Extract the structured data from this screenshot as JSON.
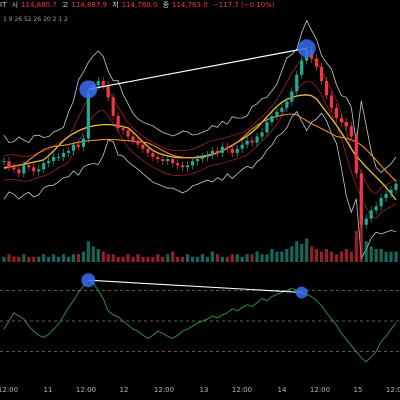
{
  "header": {
    "symbol_tail": "IT",
    "open_label": "시",
    "open_value": "114,880.7",
    "high_label": "고",
    "high_value": "114,887.9",
    "low_label": "저",
    "low_value": "114,760.0",
    "close_label": "종",
    "close_value": "114,763.0",
    "change": "−117.7 (−0.10%)"
  },
  "indicator_params": "1 9 26 52 26 20 2 1 2",
  "colors": {
    "bullish": "#22ab94",
    "bearish": "#f23645",
    "ema_yellow": "#e8c33a",
    "ema_orange": "#f08c2e",
    "bollinger": "#c9c9c9",
    "lower_green": "#2e8b3a",
    "marker_blue": "#3a6cf0",
    "red_band": "#b3262f"
  },
  "chart_data": [
    {
      "type": "candlestick",
      "title": "",
      "x_ticks": [
        "12:00",
        "11",
        "12:00",
        "12",
        "12:00",
        "13",
        "12:00",
        "14",
        "12:00",
        "15",
        "12:00"
      ],
      "price_series": [
        36,
        33,
        32,
        30,
        34,
        33,
        31,
        32,
        35,
        36,
        38,
        38,
        40,
        41,
        44,
        43,
        47,
        70,
        73,
        75,
        73,
        67,
        58,
        52,
        51,
        48,
        46,
        44,
        42,
        40,
        38,
        37,
        36,
        37,
        35,
        34,
        33,
        34,
        36,
        37,
        38,
        39,
        41,
        40,
        43,
        42,
        40,
        42,
        44,
        46,
        45,
        48,
        50,
        55,
        58,
        60,
        62,
        65,
        70,
        78,
        85,
        90,
        86,
        82,
        75,
        68,
        62,
        57,
        55,
        53,
        48,
        30,
        5,
        8,
        12,
        14,
        18,
        20,
        22,
        25
      ],
      "volume_series": [
        2,
        3,
        2,
        2,
        3,
        2,
        2,
        2,
        3,
        2,
        3,
        2,
        3,
        2,
        3,
        3,
        4,
        8,
        6,
        5,
        4,
        3,
        3,
        2,
        2,
        3,
        2,
        3,
        2,
        2,
        2,
        3,
        2,
        3,
        4,
        2,
        2,
        3,
        2,
        2,
        3,
        2,
        4,
        3,
        2,
        2,
        3,
        3,
        2,
        3,
        3,
        4,
        3,
        3,
        5,
        4,
        4,
        5,
        6,
        8,
        7,
        9,
        6,
        5,
        4,
        5,
        4,
        3,
        4,
        5,
        4,
        12,
        18,
        8,
        6,
        5,
        5,
        4,
        4,
        4
      ],
      "trendline_note_points": [
        "left-peak",
        "right-peak"
      ]
    },
    {
      "type": "line",
      "title": "",
      "oscillator_series": [
        42,
        50,
        58,
        55,
        52,
        45,
        40,
        36,
        34,
        37,
        42,
        47,
        55,
        63,
        70,
        78,
        84,
        90,
        87,
        80,
        72,
        60,
        56,
        54,
        50,
        46,
        42,
        40,
        36,
        33,
        36,
        40,
        38,
        35,
        33,
        36,
        40,
        42,
        45,
        48,
        50,
        52,
        55,
        53,
        56,
        58,
        62,
        60,
        63,
        66,
        64,
        68,
        72,
        70,
        74,
        76,
        78,
        80,
        82,
        80,
        78,
        76,
        74,
        70,
        65,
        58,
        52,
        46,
        38,
        32,
        26,
        20,
        14,
        10,
        15,
        20,
        30,
        35,
        42,
        48
      ],
      "dashed_levels": [
        80,
        50,
        20
      ]
    }
  ]
}
